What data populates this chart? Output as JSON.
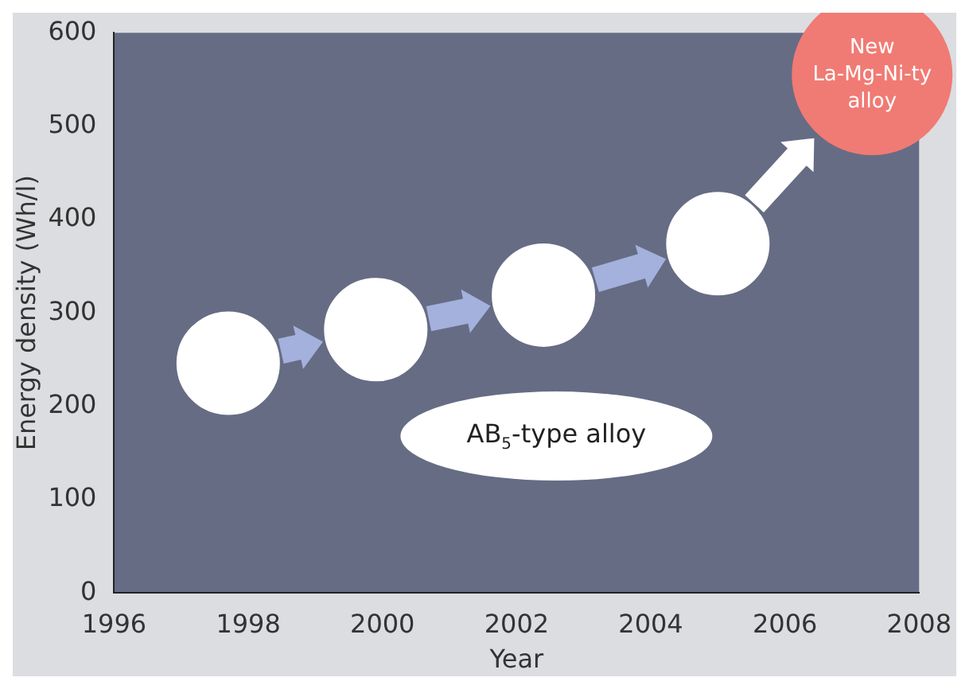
{
  "chart_data": {
    "type": "scatter",
    "xlabel": "Year",
    "ylabel": "Energy density (Wh/l)",
    "xlim": [
      1996,
      2008
    ],
    "xticks": [
      1996,
      1998,
      2000,
      2002,
      2004,
      2006,
      2008
    ],
    "ylim": [
      0,
      600
    ],
    "yticks": [
      0,
      100,
      200,
      300,
      400,
      500,
      600
    ],
    "marker": "circle",
    "legend": false,
    "series": [
      {
        "color": "#ffffff",
        "x": [
          1997.7,
          1999.9,
          2002.4,
          2005.0
        ],
        "values": [
          246,
          282,
          319,
          374
        ]
      },
      {
        "color": "#f07b74",
        "x": [
          2007.3
        ],
        "values": [
          555
        ]
      }
    ],
    "annotations": [
      "AB$_{5}$-type alloy",
      {
        "text": "New La-Mg-Ni-ty alloy",
        "x": 2007.3,
        "y": 555
      }
    ]
  }
}
